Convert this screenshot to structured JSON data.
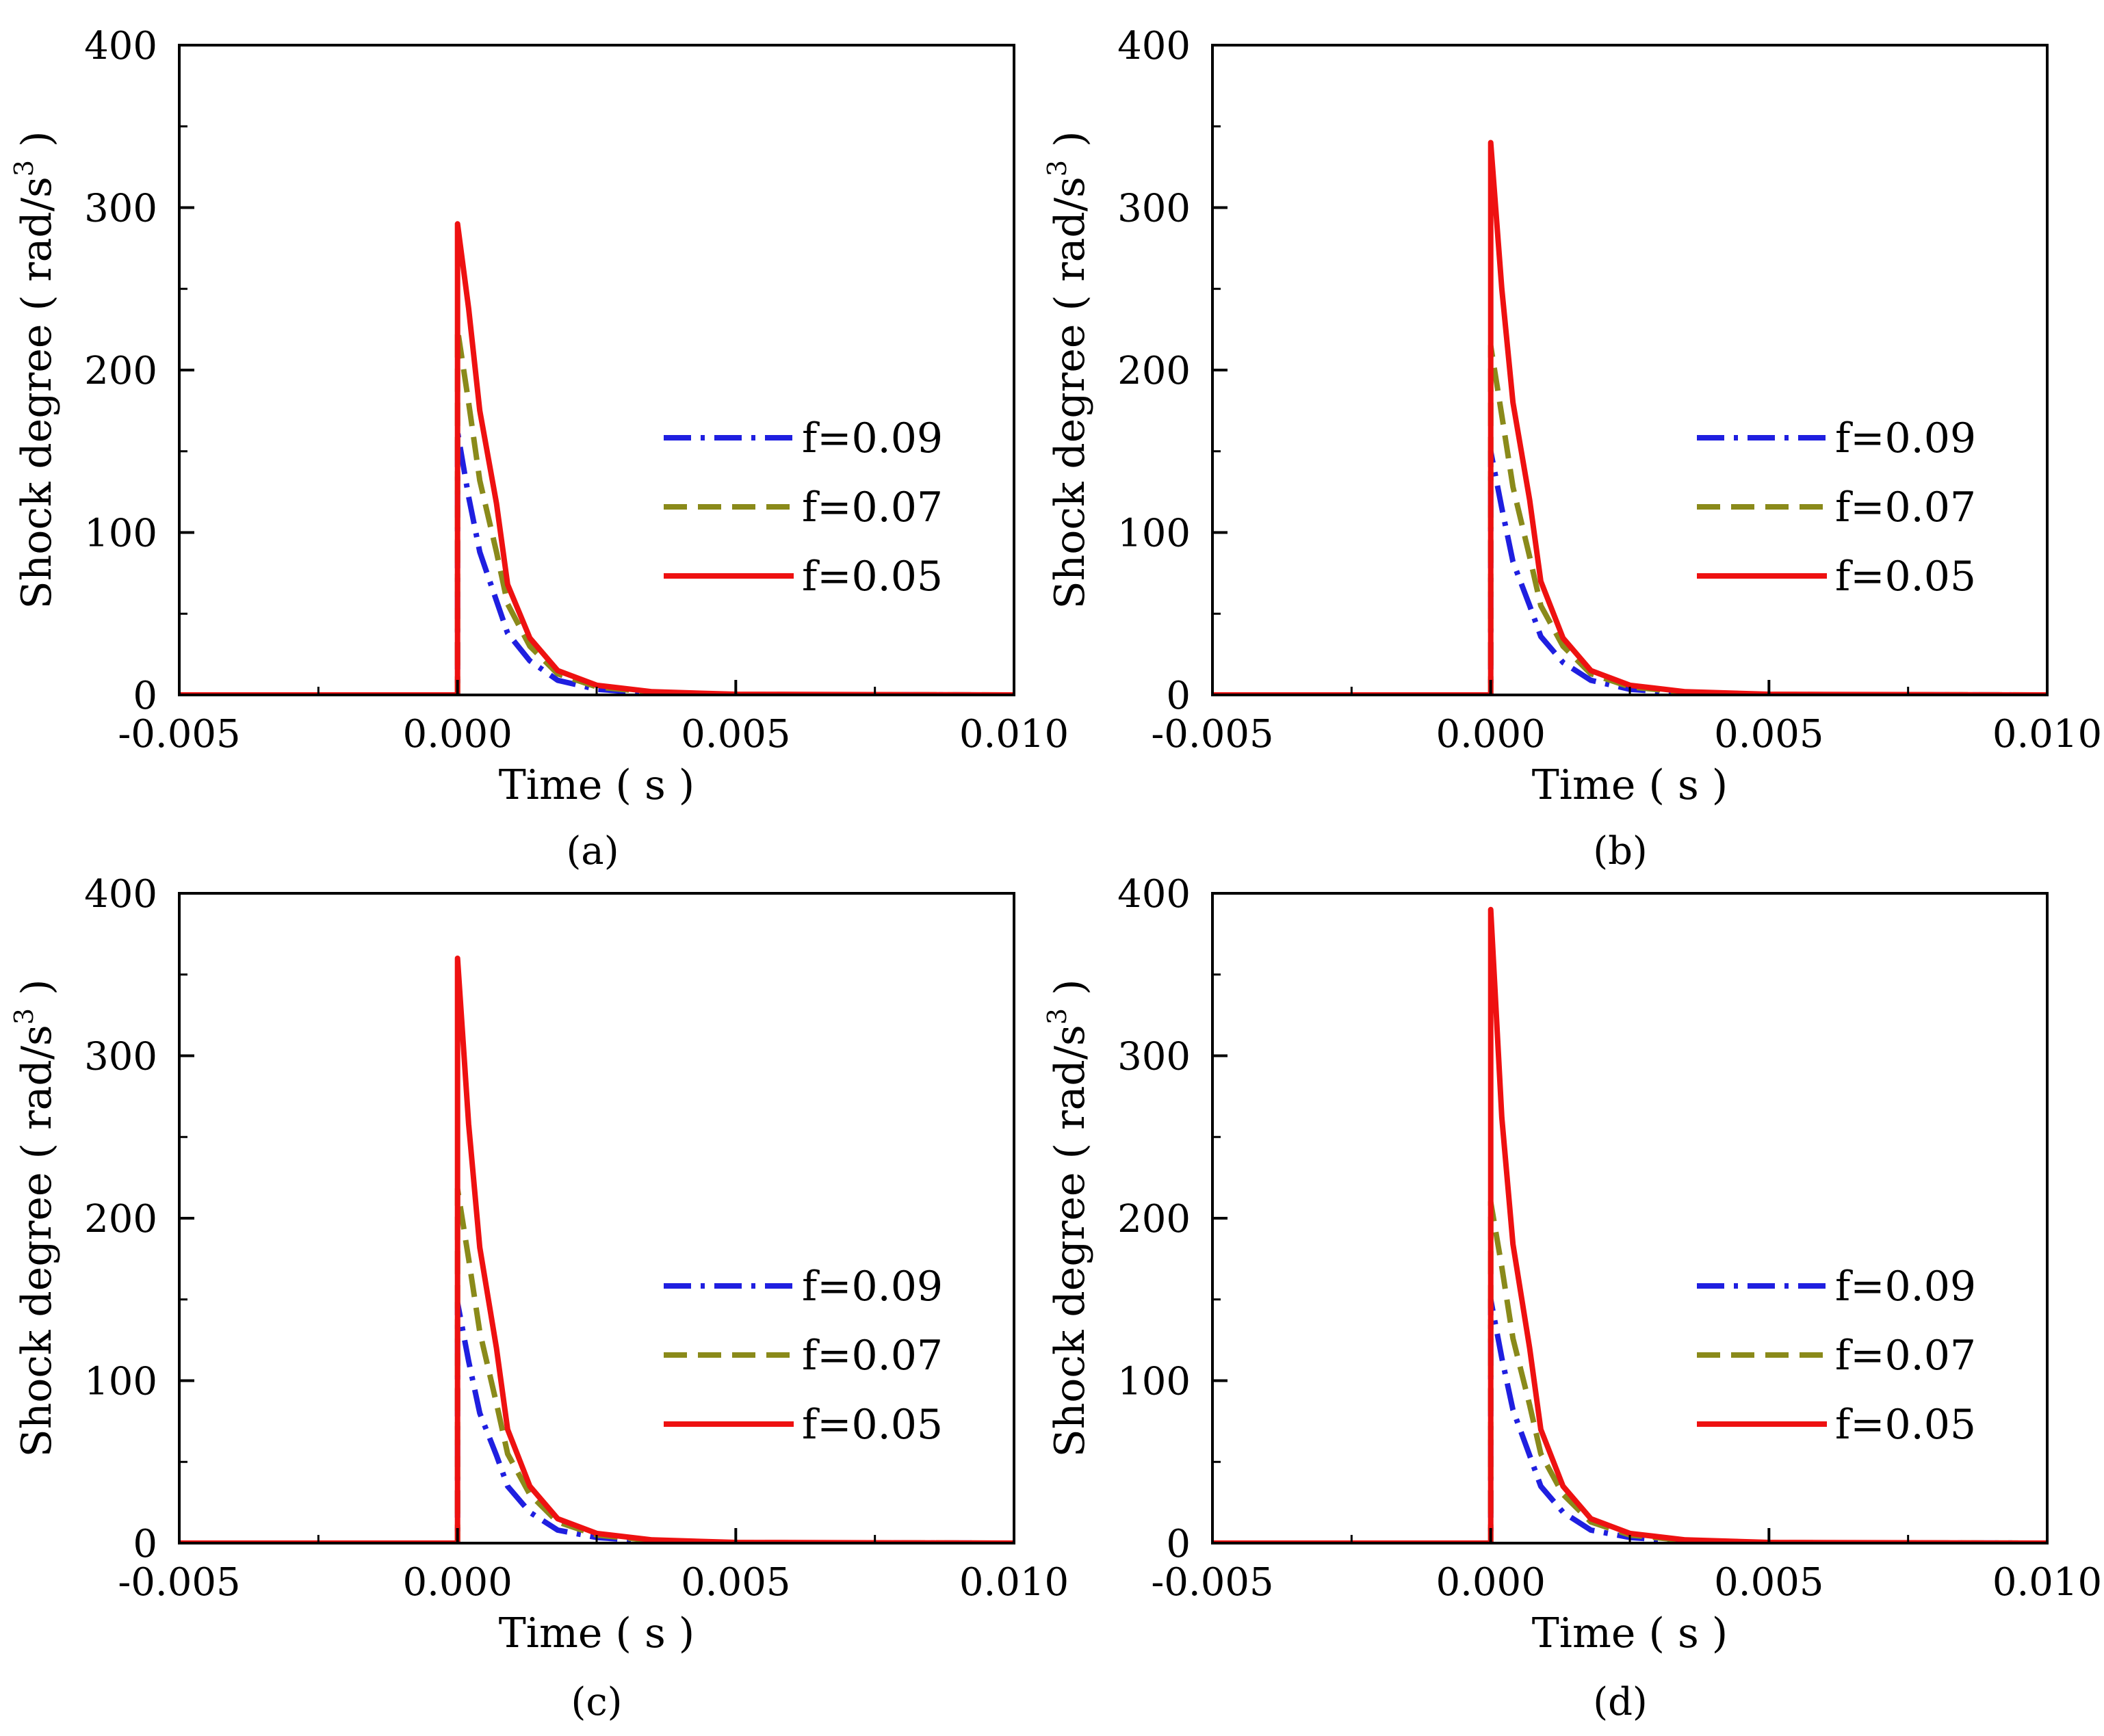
{
  "figure": {
    "panels": [
      "(a)",
      "(b)",
      "(c)",
      "(d)"
    ]
  },
  "chart_data": [
    {
      "panel_label": "(a)",
      "type": "line",
      "xlabel": "Time ( s )",
      "ylabel": {
        "main": "Shock degree ( rad/s",
        "sup": "3",
        "end": " )"
      },
      "xlim": [
        -0.005,
        0.01
      ],
      "ylim": [
        0,
        400
      ],
      "xticks": [
        -0.005,
        0.0,
        0.005,
        0.01
      ],
      "xtick_labels": [
        "-0.005",
        "0.000",
        "0.005",
        "0.010"
      ],
      "yticks": [
        0,
        100,
        200,
        300,
        400
      ],
      "ytick_labels": [
        "0",
        "100",
        "200",
        "300",
        "400"
      ],
      "grid": false,
      "legend_position": "center-right",
      "x": [
        -0.005,
        0.0,
        0.0,
        0.0002,
        0.0004,
        0.0007,
        0.0009,
        0.0013,
        0.0018,
        0.0025,
        0.0035,
        0.005,
        0.01
      ],
      "series": [
        {
          "name": "f=0.09",
          "color": "#1f1fe0",
          "dash": "dashdot",
          "values": [
            0,
            0,
            162,
            122,
            88,
            58,
            38,
            21,
            9,
            3.5,
            1,
            0.2,
            0
          ]
        },
        {
          "name": "f=0.07",
          "color": "#8a8a1a",
          "dash": "dashed",
          "values": [
            0,
            0,
            225,
            180,
            132,
            88,
            56,
            30,
            13,
            5,
            1.5,
            0.3,
            0
          ]
        },
        {
          "name": "f=0.05",
          "color": "#ee1111",
          "dash": "solid",
          "values": [
            0,
            0,
            290,
            238,
            175,
            118,
            68,
            35,
            15,
            6,
            2,
            0.4,
            0
          ]
        }
      ]
    },
    {
      "panel_label": "(b)",
      "type": "line",
      "xlabel": "Time ( s )",
      "ylabel": {
        "main": "Shock degree ( rad/s",
        "sup": "3",
        "end": " )"
      },
      "xlim": [
        -0.005,
        0.01
      ],
      "ylim": [
        0,
        400
      ],
      "xticks": [
        -0.005,
        0.0,
        0.005,
        0.01
      ],
      "xtick_labels": [
        "-0.005",
        "0.000",
        "0.005",
        "0.010"
      ],
      "yticks": [
        0,
        100,
        200,
        300,
        400
      ],
      "ytick_labels": [
        "0",
        "100",
        "200",
        "300",
        "400"
      ],
      "grid": false,
      "legend_position": "center-right",
      "x": [
        -0.005,
        0.0,
        0.0,
        0.0002,
        0.0004,
        0.0007,
        0.0009,
        0.0013,
        0.0018,
        0.0025,
        0.0035,
        0.005,
        0.01
      ],
      "series": [
        {
          "name": "f=0.09",
          "color": "#1f1fe0",
          "dash": "dashdot",
          "values": [
            0,
            0,
            150,
            115,
            82,
            55,
            36,
            20,
            9,
            3.5,
            1,
            0.2,
            0
          ]
        },
        {
          "name": "f=0.07",
          "color": "#8a8a1a",
          "dash": "dashed",
          "values": [
            0,
            0,
            215,
            172,
            128,
            85,
            55,
            30,
            13,
            5,
            1.5,
            0.3,
            0
          ]
        },
        {
          "name": "f=0.05",
          "color": "#ee1111",
          "dash": "solid",
          "values": [
            0,
            0,
            340,
            250,
            180,
            120,
            70,
            35,
            15,
            6,
            2,
            0.4,
            0
          ]
        }
      ]
    },
    {
      "panel_label": "(c)",
      "type": "line",
      "xlabel": "Time ( s )",
      "ylabel": {
        "main": "Shock degree ( rad/s",
        "sup": "3",
        "end": " )"
      },
      "xlim": [
        -0.005,
        0.01
      ],
      "ylim": [
        0,
        400
      ],
      "xticks": [
        -0.005,
        0.0,
        0.005,
        0.01
      ],
      "xtick_labels": [
        "-0.005",
        "0.000",
        "0.005",
        "0.010"
      ],
      "yticks": [
        0,
        100,
        200,
        300,
        400
      ],
      "ytick_labels": [
        "0",
        "100",
        "200",
        "300",
        "400"
      ],
      "grid": false,
      "legend_position": "center-right",
      "x": [
        -0.005,
        0.0,
        0.0,
        0.0002,
        0.0004,
        0.0007,
        0.0009,
        0.0013,
        0.0018,
        0.0025,
        0.0035,
        0.005,
        0.01
      ],
      "series": [
        {
          "name": "f=0.09",
          "color": "#1f1fe0",
          "dash": "dashdot",
          "values": [
            0,
            0,
            148,
            112,
            80,
            54,
            35,
            19,
            8,
            3.5,
            1,
            0.2,
            0
          ]
        },
        {
          "name": "f=0.07",
          "color": "#8a8a1a",
          "dash": "dashed",
          "values": [
            0,
            0,
            218,
            175,
            130,
            86,
            55,
            30,
            13,
            5,
            1.5,
            0.3,
            0
          ]
        },
        {
          "name": "f=0.05",
          "color": "#ee1111",
          "dash": "solid",
          "values": [
            0,
            0,
            360,
            258,
            182,
            120,
            70,
            35,
            15,
            6,
            2,
            0.4,
            0
          ]
        }
      ]
    },
    {
      "panel_label": "(d)",
      "type": "line",
      "xlabel": "Time ( s )",
      "ylabel": {
        "main": "Shock degree ( rad/s",
        "sup": "3",
        "end": " )"
      },
      "xlim": [
        -0.005,
        0.01
      ],
      "ylim": [
        0,
        400
      ],
      "xticks": [
        -0.005,
        0.0,
        0.005,
        0.01
      ],
      "xtick_labels": [
        "-0.005",
        "0.000",
        "0.005",
        "0.010"
      ],
      "yticks": [
        0,
        100,
        200,
        300,
        400
      ],
      "ytick_labels": [
        "0",
        "100",
        "200",
        "300",
        "400"
      ],
      "grid": false,
      "legend_position": "center-right",
      "x": [
        -0.005,
        0.0,
        0.0,
        0.0002,
        0.0004,
        0.0007,
        0.0009,
        0.0013,
        0.0018,
        0.0025,
        0.0035,
        0.005,
        0.01
      ],
      "series": [
        {
          "name": "f=0.09",
          "color": "#1f1fe0",
          "dash": "dashdot",
          "values": [
            0,
            0,
            150,
            114,
            82,
            54,
            35,
            19,
            8,
            3.5,
            1,
            0.2,
            0
          ]
        },
        {
          "name": "f=0.07",
          "color": "#8a8a1a",
          "dash": "dashed",
          "values": [
            0,
            0,
            210,
            170,
            126,
            85,
            55,
            30,
            13,
            5,
            1.5,
            0.3,
            0
          ]
        },
        {
          "name": "f=0.05",
          "color": "#ee1111",
          "dash": "solid",
          "values": [
            0,
            0,
            390,
            262,
            184,
            120,
            70,
            35,
            15,
            6,
            2,
            0.4,
            0
          ]
        }
      ]
    }
  ]
}
